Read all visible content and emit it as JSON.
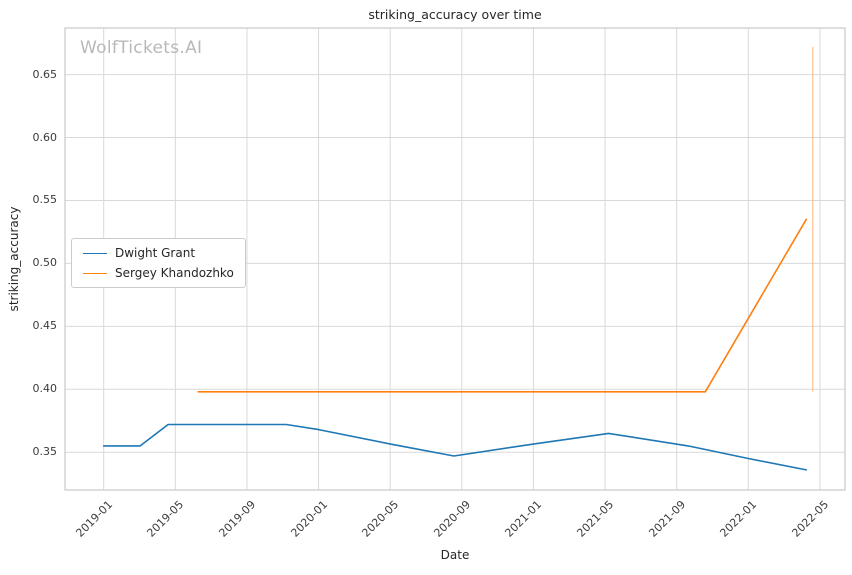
{
  "chart_data": {
    "type": "line",
    "title": "striking_accuracy over time",
    "watermark": "WolfTickets.AI",
    "xlabel": "Date",
    "ylabel": "striking_accuracy",
    "grid": true,
    "legend_position": "center-left",
    "x_domain": [
      2018.82,
      2022.45
    ],
    "y_domain": [
      0.32,
      0.687
    ],
    "x_ticks": [
      {
        "label": "2019-01",
        "value": 2019.0
      },
      {
        "label": "2019-05",
        "value": 2019.3333
      },
      {
        "label": "2019-09",
        "value": 2019.6667
      },
      {
        "label": "2020-01",
        "value": 2020.0
      },
      {
        "label": "2020-05",
        "value": 2020.3333
      },
      {
        "label": "2020-09",
        "value": 2020.6667
      },
      {
        "label": "2021-01",
        "value": 2021.0
      },
      {
        "label": "2021-05",
        "value": 2021.3333
      },
      {
        "label": "2021-09",
        "value": 2021.6667
      },
      {
        "label": "2022-01",
        "value": 2022.0
      },
      {
        "label": "2022-05",
        "value": 2022.3333
      }
    ],
    "y_ticks": [
      {
        "label": "0.35",
        "value": 0.35
      },
      {
        "label": "0.40",
        "value": 0.4
      },
      {
        "label": "0.45",
        "value": 0.45
      },
      {
        "label": "0.50",
        "value": 0.5
      },
      {
        "label": "0.55",
        "value": 0.55
      },
      {
        "label": "0.60",
        "value": 0.6
      },
      {
        "label": "0.65",
        "value": 0.65
      }
    ],
    "series": [
      {
        "name": "Dwight Grant",
        "color": "#1f77b4",
        "points": [
          [
            2019.0,
            0.355
          ],
          [
            2019.17,
            0.355
          ],
          [
            2019.3,
            0.372
          ],
          [
            2019.85,
            0.372
          ],
          [
            2020.0,
            0.368
          ],
          [
            2020.35,
            0.356
          ],
          [
            2020.63,
            0.347
          ],
          [
            2021.02,
            0.357
          ],
          [
            2021.35,
            0.365
          ],
          [
            2021.72,
            0.355
          ],
          [
            2022.0,
            0.345
          ],
          [
            2022.27,
            0.336
          ]
        ]
      },
      {
        "name": "Sergey Khandozhko",
        "color": "#ff7f0e",
        "points": [
          [
            2019.44,
            0.398
          ],
          [
            2021.8,
            0.398
          ],
          [
            2022.27,
            0.535
          ]
        ]
      }
    ],
    "annotations": [
      {
        "type": "vline",
        "x": 2022.3,
        "y_from": 0.398,
        "y_to": 0.672,
        "color": "#ffb074",
        "width": 0.9
      }
    ]
  },
  "legend": {
    "items": [
      {
        "label": "Dwight Grant",
        "color": "#1f77b4"
      },
      {
        "label": "Sergey Khandozhko",
        "color": "#ff7f0e"
      }
    ]
  },
  "style": {
    "grid_color": "#d9d9d9",
    "spine_color": "#c9c9c9",
    "background": "#ffffff"
  }
}
